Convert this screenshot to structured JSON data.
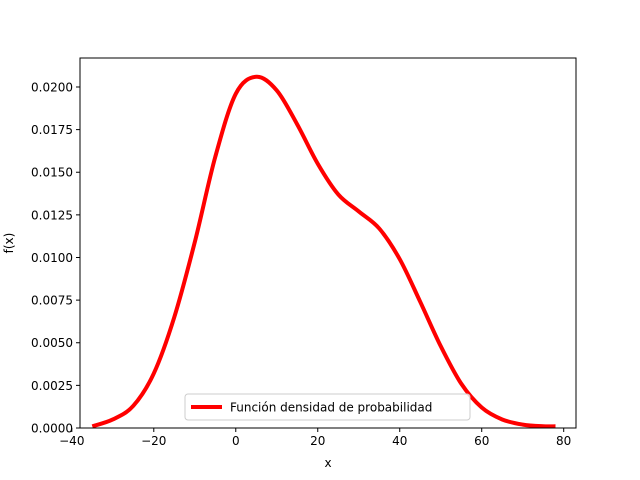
{
  "chart_data": {
    "type": "line",
    "title": "",
    "xlabel": "x",
    "ylabel": "f(x)",
    "xlim": [
      -38,
      83
    ],
    "ylim": [
      0,
      0.0217
    ],
    "xticks": [
      -40,
      -20,
      0,
      20,
      40,
      60,
      80
    ],
    "xtick_labels": [
      "−40",
      "−20",
      "0",
      "20",
      "40",
      "60",
      "80"
    ],
    "yticks": [
      0,
      0.0025,
      0.005,
      0.0075,
      0.01,
      0.0125,
      0.015,
      0.0175,
      0.02
    ],
    "ytick_labels": [
      "0.0000",
      "0.0025",
      "0.0050",
      "0.0075",
      "0.0100",
      "0.0125",
      "0.0150",
      "0.0175",
      "0.0200"
    ],
    "grid": false,
    "legend": {
      "position": "lower center"
    },
    "series": [
      {
        "name": "Función densidad de probabilidad",
        "color": "#ff0000",
        "x": [
          -35,
          -30,
          -25,
          -20,
          -15,
          -10,
          -5,
          0,
          5,
          10,
          15,
          20,
          25,
          30,
          35,
          40,
          45,
          50,
          55,
          60,
          65,
          70,
          75,
          78
        ],
        "y": [
          0.0001,
          0.0005,
          0.0013,
          0.0032,
          0.0065,
          0.0109,
          0.0159,
          0.0196,
          0.0206,
          0.0198,
          0.0178,
          0.0155,
          0.0137,
          0.0127,
          0.0117,
          0.0099,
          0.0074,
          0.0048,
          0.0026,
          0.0012,
          0.0005,
          0.0002,
          0.0001,
          0.0001
        ]
      }
    ]
  }
}
